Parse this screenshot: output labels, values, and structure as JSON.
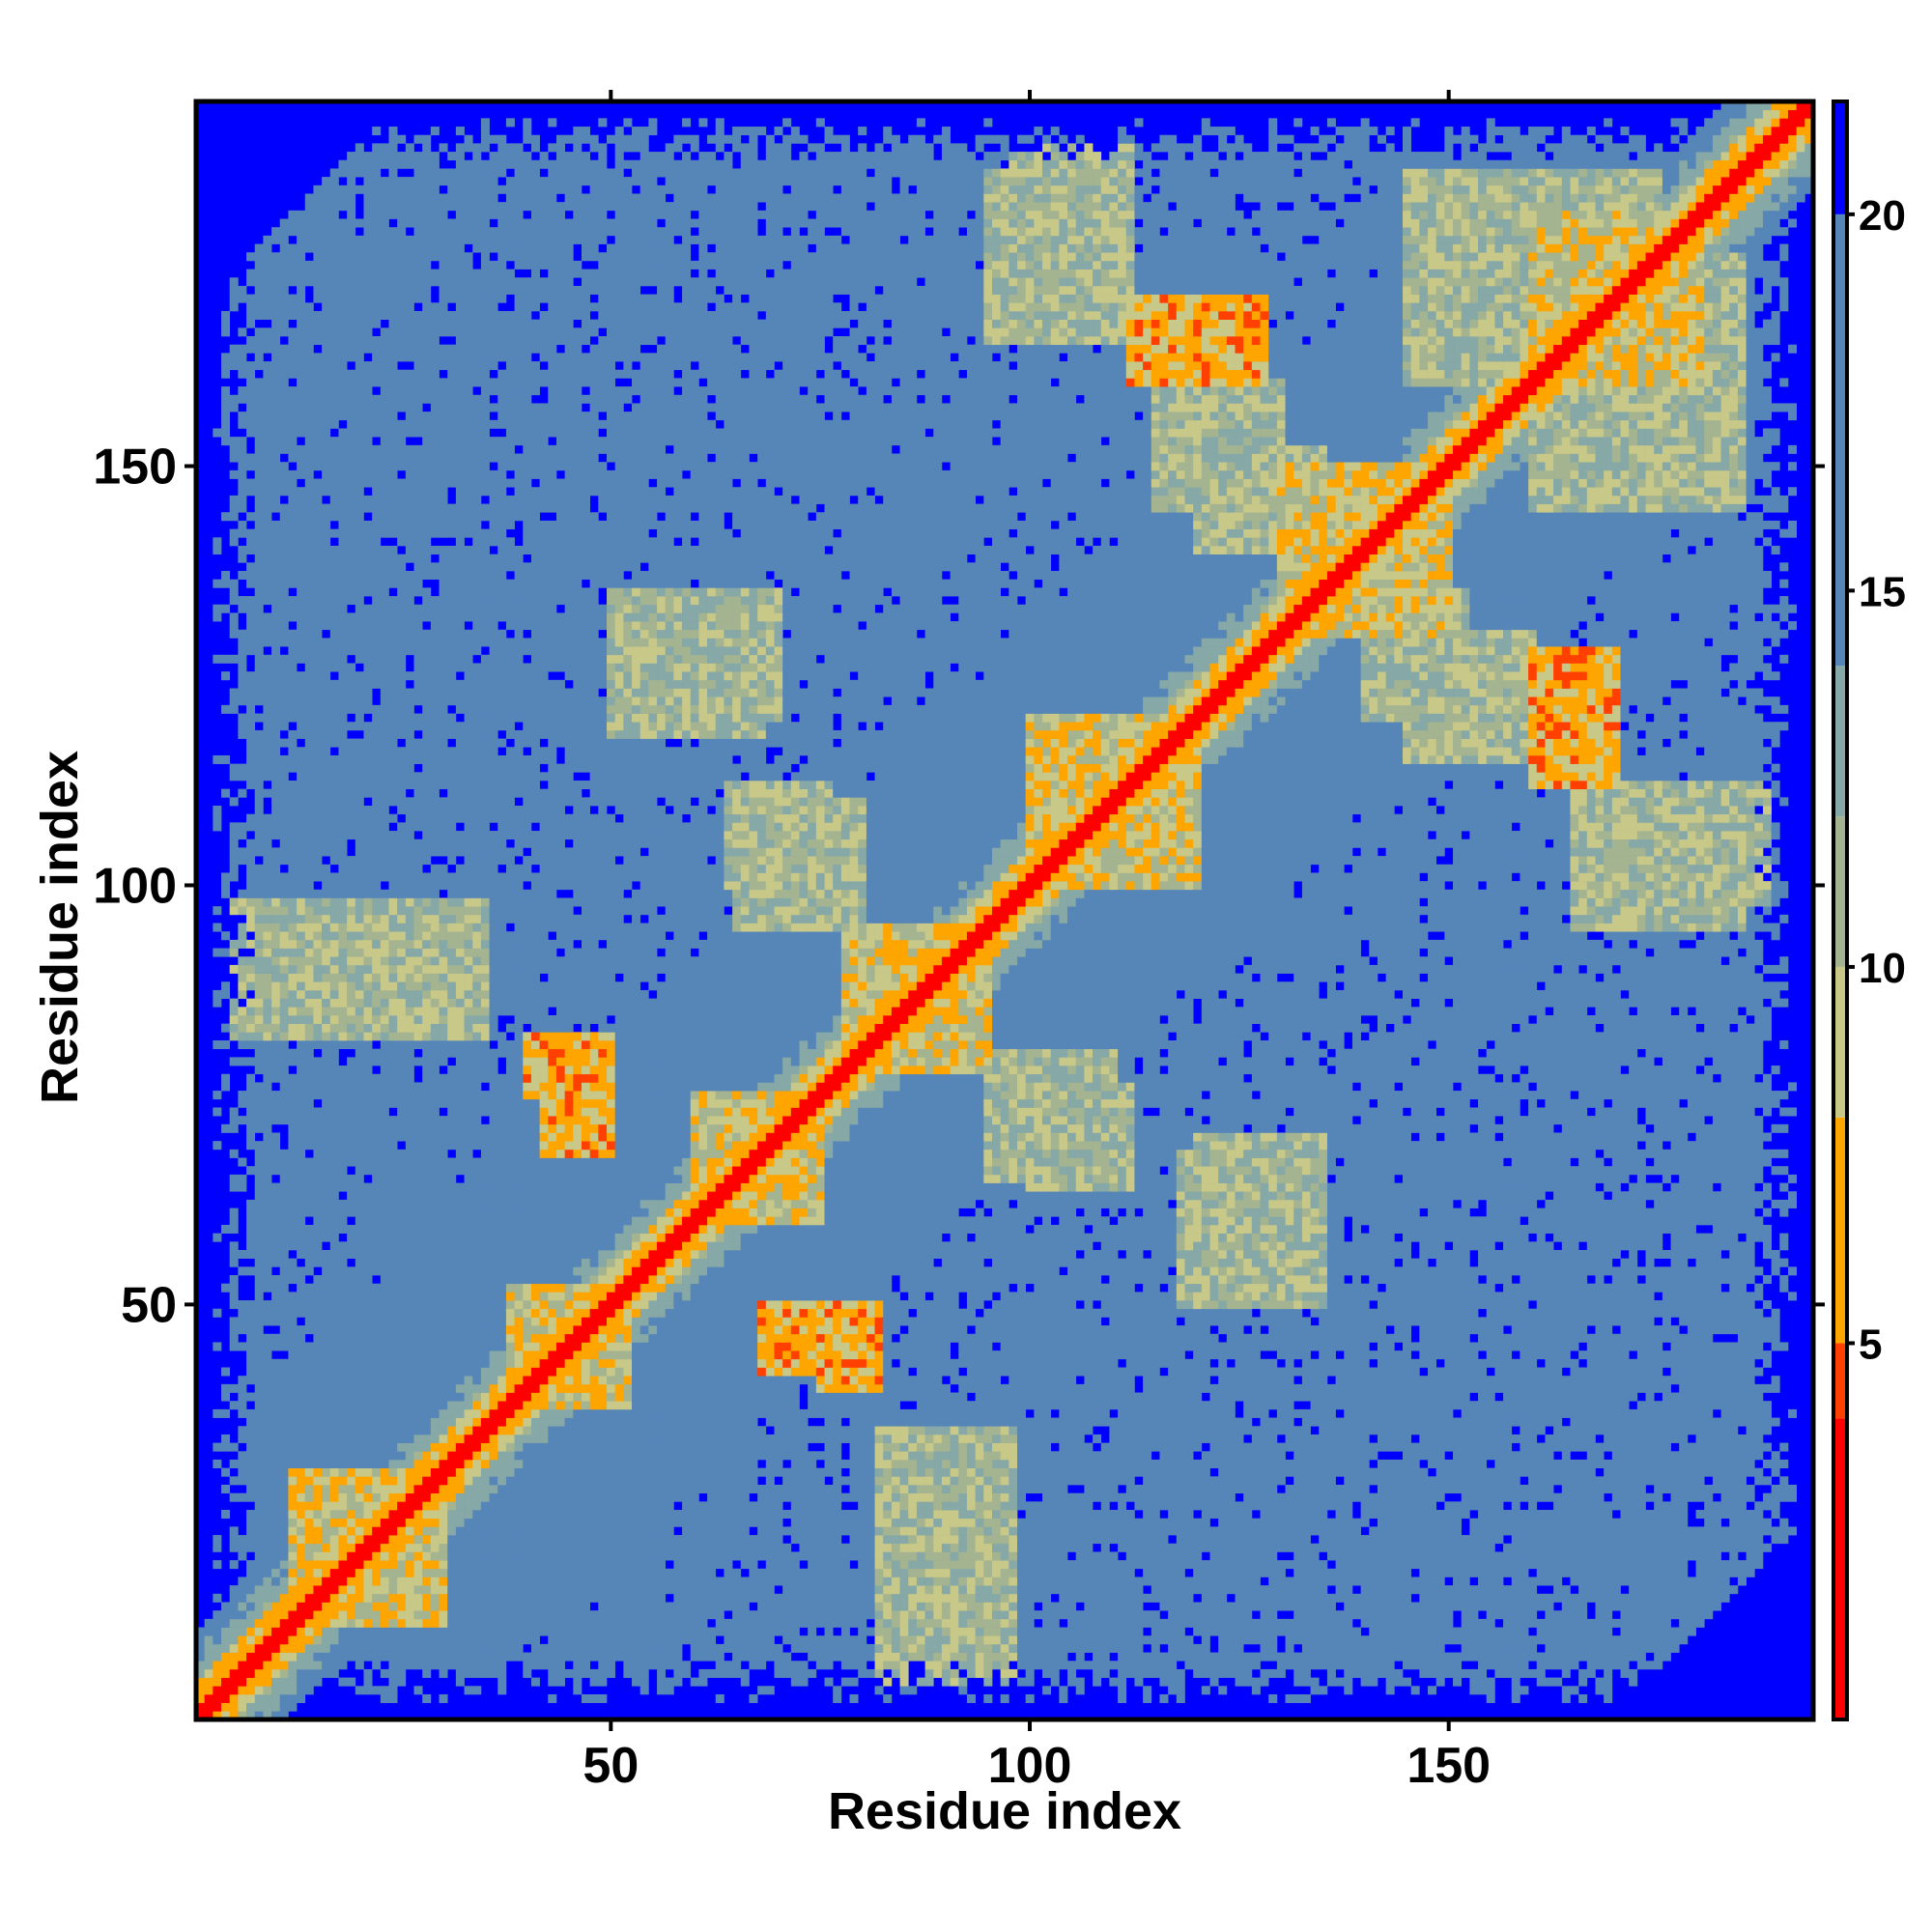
{
  "chart_data": {
    "type": "heatmap",
    "title": "",
    "xlabel": "Residue index",
    "ylabel": "Residue index",
    "n_residues": 193,
    "xlim": [
      1,
      193
    ],
    "ylim": [
      1,
      193
    ],
    "x_ticks": [
      50,
      100,
      150
    ],
    "y_ticks": [
      50,
      100,
      150
    ],
    "colorbar": {
      "ticks": [
        5,
        10,
        15,
        20
      ],
      "range": [
        0,
        21.5
      ],
      "placement": "right",
      "bands": [
        {
          "from": 0,
          "to": 4,
          "color": "#ff0000"
        },
        {
          "from": 4,
          "to": 5,
          "color": "#ff4000"
        },
        {
          "from": 5,
          "to": 8,
          "color": "#ffa500"
        },
        {
          "from": 8,
          "to": 10,
          "color": "#c8c888"
        },
        {
          "from": 10,
          "to": 12,
          "color": "#a4b490"
        },
        {
          "from": 12,
          "to": 14,
          "color": "#86a8a6"
        },
        {
          "from": 14,
          "to": 20,
          "color": "#5686b8"
        },
        {
          "from": 20,
          "to": 21.5,
          "color": "#0000ff"
        }
      ]
    },
    "colors": {
      "close": "#ff0000",
      "near": "#ffa500",
      "mid": "#c8c888",
      "far": "#5686b8",
      "outside": "#0000ff"
    },
    "diagonal_distance": 0,
    "contact_blocks": [
      {
        "i": [
          12,
          30
        ],
        "j": [
          12,
          30
        ],
        "d": 9
      },
      {
        "i": [
          38,
          52
        ],
        "j": [
          38,
          52
        ],
        "d": 9
      },
      {
        "i": [
          60,
          75
        ],
        "j": [
          60,
          75
        ],
        "d": 9
      },
      {
        "i": [
          78,
          95
        ],
        "j": [
          78,
          95
        ],
        "d": 9
      },
      {
        "i": [
          100,
          120
        ],
        "j": [
          100,
          120
        ],
        "d": 9
      },
      {
        "i": [
          130,
          150
        ],
        "j": [
          130,
          150
        ],
        "d": 9
      },
      {
        "i": [
          160,
          180
        ],
        "j": [
          160,
          180
        ],
        "d": 9
      },
      {
        "i": [
          5,
          35
        ],
        "j": [
          82,
          98
        ],
        "d": 11
      },
      {
        "i": [
          40,
          50
        ],
        "j": [
          75,
          82
        ],
        "d": 7
      },
      {
        "i": [
          68,
          80
        ],
        "j": [
          42,
          50
        ],
        "d": 7
      },
      {
        "i": [
          82,
          92
        ],
        "j": [
          12,
          30
        ],
        "d": 11
      },
      {
        "i": [
          50,
          68
        ],
        "j": [
          118,
          135
        ],
        "d": 11
      },
      {
        "i": [
          64,
          76
        ],
        "j": [
          100,
          112
        ],
        "d": 11
      },
      {
        "i": [
          95,
          110
        ],
        "j": [
          65,
          80
        ],
        "d": 11
      },
      {
        "i": [
          120,
          135
        ],
        "j": [
          58,
          70
        ],
        "d": 11
      },
      {
        "i": [
          98,
          112
        ],
        "j": [
          168,
          188
        ],
        "d": 11
      },
      {
        "i": [
          112,
          128
        ],
        "j": [
          160,
          170
        ],
        "d": 7
      },
      {
        "i": [
          115,
          130
        ],
        "j": [
          145,
          160
        ],
        "d": 11
      },
      {
        "i": [
          140,
          152
        ],
        "j": [
          120,
          135
        ],
        "d": 11
      },
      {
        "i": [
          160,
          170
        ],
        "j": [
          113,
          120
        ],
        "d": 7
      },
      {
        "i": [
          165,
          185
        ],
        "j": [
          95,
          112
        ],
        "d": 11
      },
      {
        "i": [
          145,
          175
        ],
        "j": [
          160,
          185
        ],
        "d": 11
      }
    ],
    "far_region": {
      "center": [
        97,
        97
      ],
      "half_width": 95,
      "corner_cut": 22
    }
  }
}
